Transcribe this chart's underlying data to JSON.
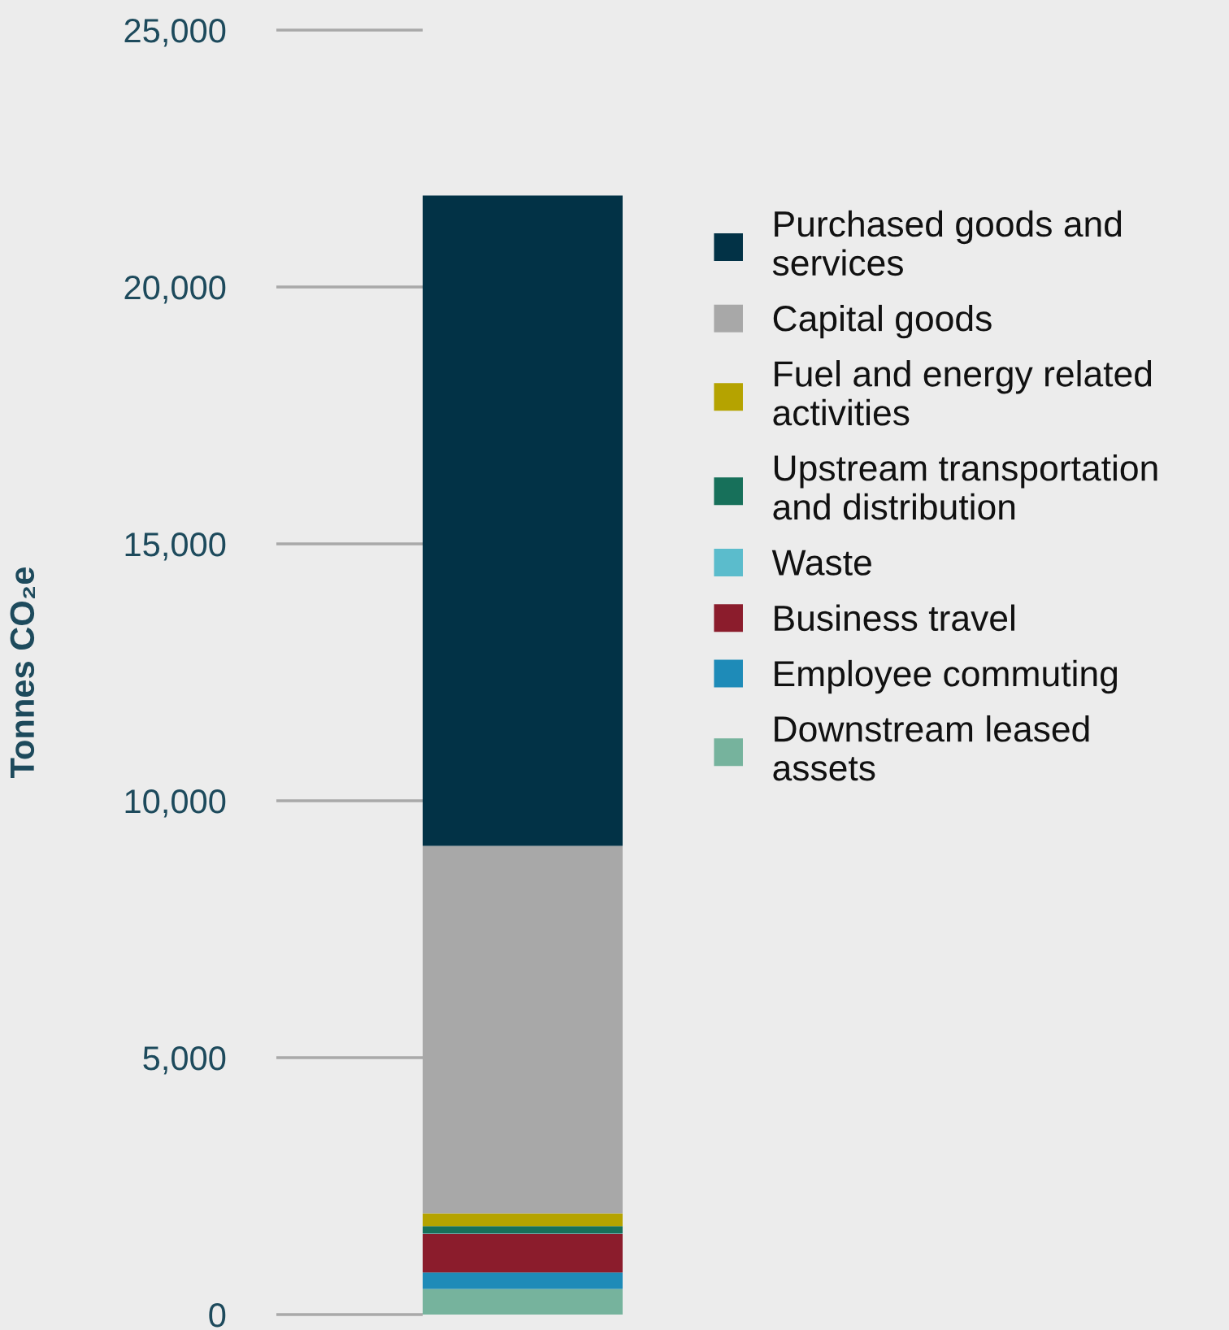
{
  "chart_data": {
    "type": "bar",
    "stacked": true,
    "ylabel": "Tonnes CO₂e",
    "categories": [
      null
    ],
    "series": [
      {
        "name": "Downstream leased assets",
        "color": "#76b39d",
        "values": [
          500
        ]
      },
      {
        "name": "Employee commuting",
        "color": "#1e8bb8",
        "values": [
          320
        ]
      },
      {
        "name": "Business travel",
        "color": "#8b1c2c",
        "values": [
          750
        ]
      },
      {
        "name": "Waste",
        "color": "#5bbccc",
        "values": [
          10
        ]
      },
      {
        "name": "Upstream transportation and distribution",
        "color": "#17705a",
        "values": [
          140
        ]
      },
      {
        "name": "Fuel and energy related activities",
        "color": "#b5a300",
        "values": [
          250
        ]
      },
      {
        "name": "Capital goods",
        "color": "#a8a8a8",
        "values": [
          7150
        ]
      },
      {
        "name": "Purchased goods and services",
        "color": "#023246",
        "values": [
          12660
        ]
      }
    ],
    "ylim": [
      0,
      25000
    ],
    "yticks": [
      {
        "value": 0,
        "label": "0"
      },
      {
        "value": 5000,
        "label": "5,000"
      },
      {
        "value": 10000,
        "label": "10,000"
      },
      {
        "value": 15000,
        "label": "15,000"
      },
      {
        "value": 20000,
        "label": "20,000"
      },
      {
        "value": 25000,
        "label": "25,000"
      }
    ],
    "legend": "right"
  }
}
